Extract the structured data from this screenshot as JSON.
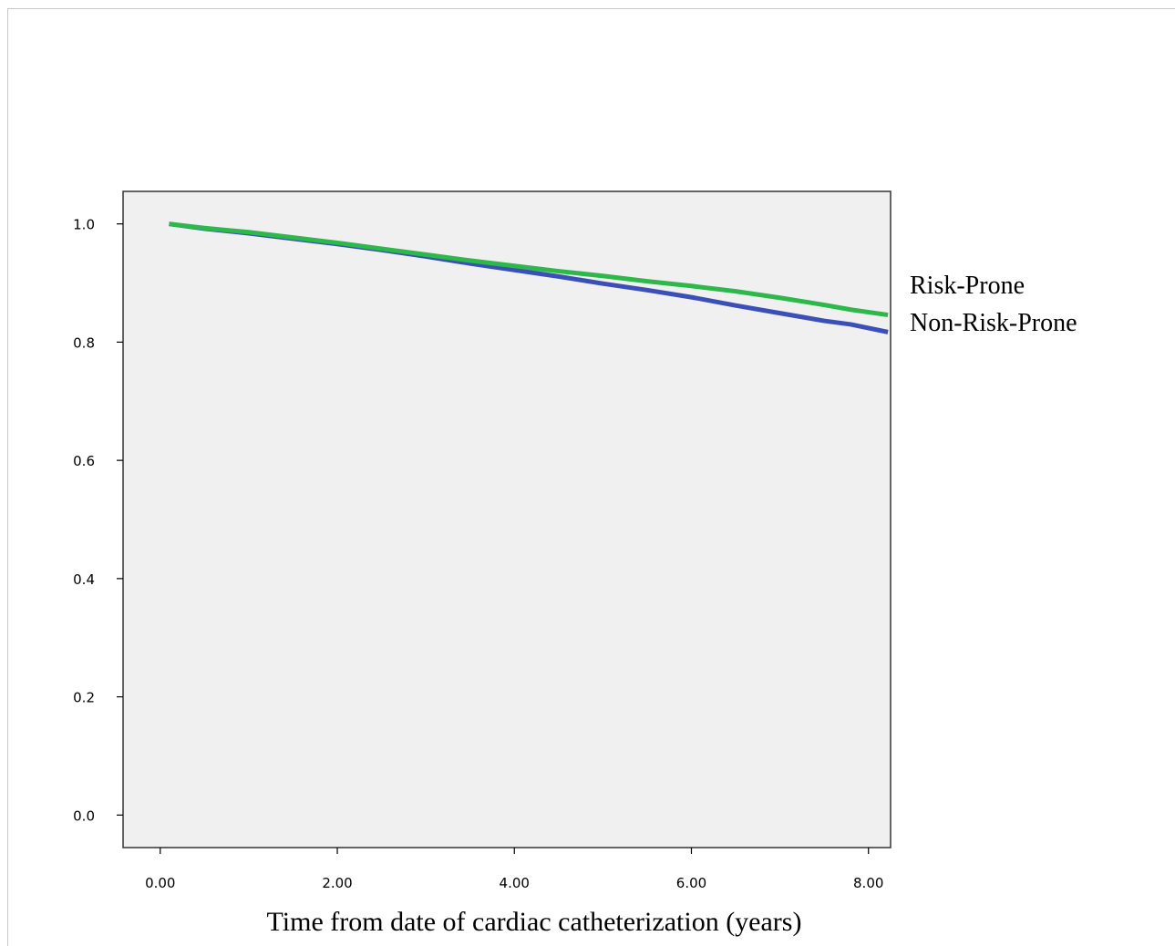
{
  "chart_data": {
    "type": "line",
    "xlabel": "Time from date of cardiac catheterization (years)",
    "ylabel": "",
    "xlim": [
      -0.42,
      8.25
    ],
    "ylim": [
      -0.055,
      1.055
    ],
    "x_ticks": [
      "0.00",
      "2.00",
      "4.00",
      "6.00",
      "8.00"
    ],
    "y_ticks": [
      "0.0",
      "0.2",
      "0.4",
      "0.6",
      "0.8",
      "1.0"
    ],
    "grid": false,
    "series": [
      {
        "name": "Risk-Prone",
        "color": "#2db84a",
        "x": [
          0.1,
          0.5,
          1.0,
          1.5,
          2.0,
          2.5,
          3.0,
          3.5,
          4.0,
          4.5,
          5.0,
          5.5,
          6.0,
          6.5,
          7.0,
          7.5,
          7.8,
          8.22
        ],
        "y": [
          1.0,
          0.993,
          0.986,
          0.977,
          0.968,
          0.958,
          0.948,
          0.938,
          0.929,
          0.92,
          0.912,
          0.903,
          0.895,
          0.886,
          0.875,
          0.863,
          0.855,
          0.846
        ]
      },
      {
        "name": "Non-Risk-Prone",
        "color": "#3a4fb8",
        "x": [
          0.1,
          0.5,
          1.0,
          1.5,
          2.0,
          2.5,
          3.0,
          3.5,
          4.0,
          4.5,
          5.0,
          5.5,
          6.0,
          6.5,
          7.0,
          7.5,
          7.8,
          8.22
        ],
        "y": [
          1.0,
          0.992,
          0.984,
          0.975,
          0.966,
          0.956,
          0.945,
          0.933,
          0.922,
          0.911,
          0.899,
          0.888,
          0.876,
          0.862,
          0.849,
          0.836,
          0.83,
          0.817
        ]
      }
    ]
  }
}
